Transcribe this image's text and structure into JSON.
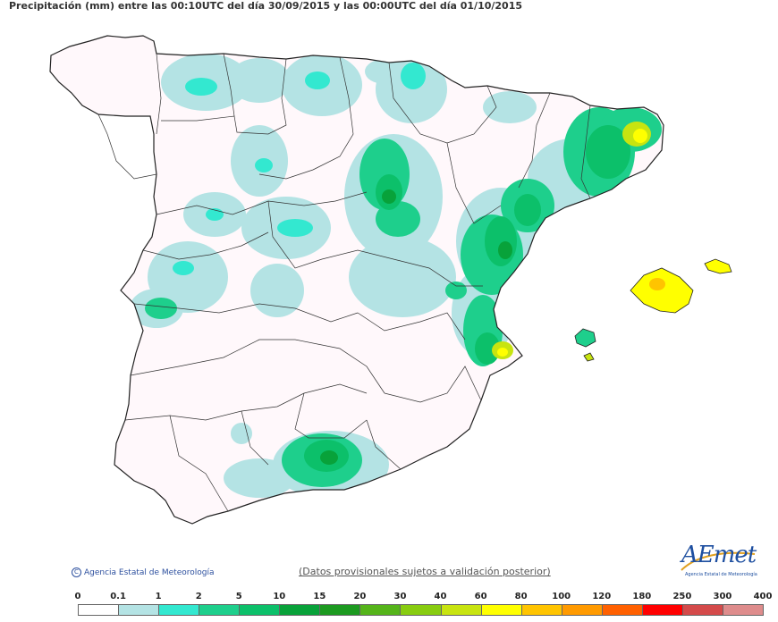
{
  "title": "Precipitación (mm) entre las 00:10UTC del día 30/09/2015 y las 00:00UTC del día 01/10/2015",
  "copyright": "Agencia Estatal de Meteorología",
  "disclaimer": "(Datos provisionales sujetos a validación posterior)",
  "logo": {
    "name": "AEmet",
    "subtitle": "Agencia Estatal de Meteorología"
  },
  "legend": {
    "ticks": [
      "0",
      "0.1",
      "1",
      "2",
      "5",
      "10",
      "15",
      "20",
      "30",
      "40",
      "60",
      "80",
      "100",
      "120",
      "180",
      "250",
      "300",
      "400"
    ],
    "colors": [
      "#ffffff",
      "#b4e3e4",
      "#33e8d0",
      "#1ecf8c",
      "#0cc06a",
      "#08a23a",
      "#1c9a20",
      "#55b41a",
      "#88cc10",
      "#c8e410",
      "#ffff00",
      "#ffc400",
      "#ff9a00",
      "#ff6000",
      "#ff0000",
      "#d44a4a",
      "#de8c8c",
      "#f0c4c4"
    ]
  }
}
